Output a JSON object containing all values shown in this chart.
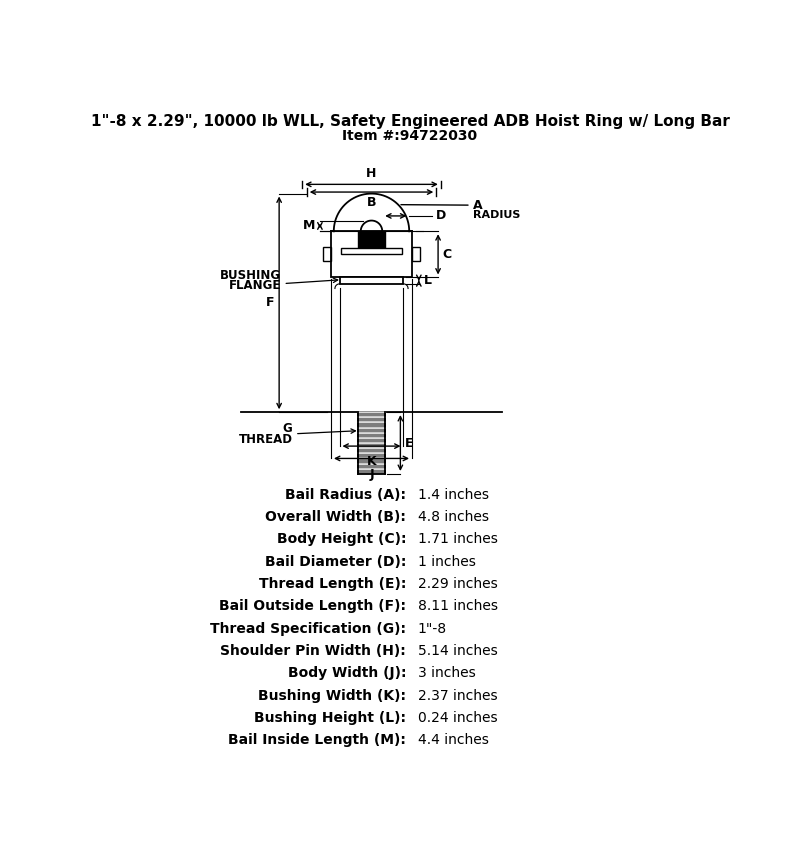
{
  "title_line1": "1\"-8 x 2.29\", 10000 lb WLL, Safety Engineered ADB Hoist Ring w/ Long Bar",
  "title_line2": "Item #:94722030",
  "title_fontsize": 11,
  "subtitle_fontsize": 10,
  "specs": [
    [
      "Bail Radius (A):",
      "1.4 inches"
    ],
    [
      "Overall Width (B):",
      "4.8 inches"
    ],
    [
      "Body Height (C):",
      "1.71 inches"
    ],
    [
      "Bail Diameter (D):",
      "1 inches"
    ],
    [
      "Thread Length (E):",
      "2.29 inches"
    ],
    [
      "Bail Outside Length (F):",
      "8.11 inches"
    ],
    [
      "Thread Specification (G):",
      "1\"-8"
    ],
    [
      "Shoulder Pin Width (H):",
      "5.14 inches"
    ],
    [
      "Body Width (J):",
      "3 inches"
    ],
    [
      "Bushing Width (K):",
      "2.37 inches"
    ],
    [
      "Bushing Height (L):",
      "0.24 inches"
    ],
    [
      "Bail Inside Length (M):",
      "4.4 inches"
    ]
  ],
  "spec_label_fontsize": 10,
  "spec_value_fontsize": 10,
  "bg_color": "#ffffff",
  "line_color": "#000000"
}
